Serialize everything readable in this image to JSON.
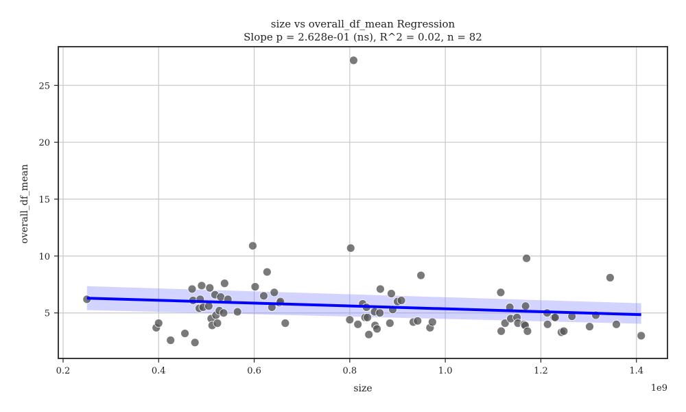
{
  "chart_data": {
    "type": "scatter",
    "title": "size vs overall_df_mean Regression",
    "subtitle": "Slope p = 2.628e-01 (ns), R^2 = 0.02, n = 82",
    "xlabel": "size",
    "ylabel": "overall_df_mean",
    "x_offset_label": "1e9",
    "xlim": [
      0.19,
      1.465
    ],
    "ylim": [
      1.0,
      28.4
    ],
    "xticks": [
      0.2,
      0.4,
      0.6,
      0.8,
      1.0,
      1.2,
      1.4
    ],
    "xtick_labels": [
      "0.2",
      "0.4",
      "0.6",
      "0.8",
      "1.0",
      "1.2",
      "1.4"
    ],
    "yticks": [
      5,
      10,
      15,
      20,
      25
    ],
    "ytick_labels": [
      "5",
      "10",
      "15",
      "20",
      "25"
    ],
    "grid": true,
    "colors": {
      "points": "#555555",
      "line": "#0000ff",
      "band": "#8080ff"
    },
    "regression": {
      "x": [
        0.25,
        1.41
      ],
      "y": [
        6.3,
        4.85
      ]
    },
    "confidence_band": {
      "x": [
        0.25,
        1.41
      ],
      "upper": [
        7.35,
        5.85
      ],
      "lower": [
        5.25,
        4.05
      ]
    },
    "points": [
      [
        0.25,
        6.2
      ],
      [
        0.395,
        3.7
      ],
      [
        0.4,
        4.1
      ],
      [
        0.425,
        2.6
      ],
      [
        0.455,
        3.2
      ],
      [
        0.47,
        7.1
      ],
      [
        0.472,
        6.1
      ],
      [
        0.476,
        2.4
      ],
      [
        0.485,
        5.4
      ],
      [
        0.487,
        6.2
      ],
      [
        0.49,
        7.4
      ],
      [
        0.493,
        5.5
      ],
      [
        0.505,
        5.6
      ],
      [
        0.507,
        7.2
      ],
      [
        0.51,
        4.5
      ],
      [
        0.512,
        3.9
      ],
      [
        0.518,
        6.6
      ],
      [
        0.52,
        4.8
      ],
      [
        0.523,
        4.1
      ],
      [
        0.527,
        5.2
      ],
      [
        0.53,
        6.4
      ],
      [
        0.536,
        5.0
      ],
      [
        0.538,
        7.6
      ],
      [
        0.545,
        6.2
      ],
      [
        0.565,
        5.1
      ],
      [
        0.597,
        10.9
      ],
      [
        0.602,
        7.3
      ],
      [
        0.62,
        6.5
      ],
      [
        0.627,
        8.6
      ],
      [
        0.637,
        5.5
      ],
      [
        0.642,
        6.8
      ],
      [
        0.653,
        5.9
      ],
      [
        0.655,
        6.0
      ],
      [
        0.665,
        4.1
      ],
      [
        0.8,
        4.4
      ],
      [
        0.802,
        10.7
      ],
      [
        0.808,
        27.2
      ],
      [
        0.817,
        4.0
      ],
      [
        0.827,
        5.8
      ],
      [
        0.832,
        4.6
      ],
      [
        0.835,
        5.5
      ],
      [
        0.837,
        4.6
      ],
      [
        0.84,
        3.1
      ],
      [
        0.852,
        5.1
      ],
      [
        0.853,
        3.9
      ],
      [
        0.857,
        3.6
      ],
      [
        0.863,
        5.0
      ],
      [
        0.864,
        7.1
      ],
      [
        0.884,
        4.1
      ],
      [
        0.887,
        6.7
      ],
      [
        0.89,
        5.3
      ],
      [
        0.9,
        6.0
      ],
      [
        0.908,
        6.1
      ],
      [
        0.933,
        4.2
      ],
      [
        0.942,
        4.3
      ],
      [
        0.949,
        8.3
      ],
      [
        0.968,
        3.7
      ],
      [
        0.973,
        4.2
      ],
      [
        1.116,
        6.8
      ],
      [
        1.117,
        3.4
      ],
      [
        1.125,
        4.1
      ],
      [
        1.135,
        5.5
      ],
      [
        1.137,
        4.5
      ],
      [
        1.15,
        4.6
      ],
      [
        1.152,
        4.1
      ],
      [
        1.165,
        4.0
      ],
      [
        1.167,
        3.9
      ],
      [
        1.168,
        5.6
      ],
      [
        1.17,
        9.8
      ],
      [
        1.172,
        3.4
      ],
      [
        1.213,
        5.0
      ],
      [
        1.214,
        4.0
      ],
      [
        1.228,
        4.6
      ],
      [
        1.23,
        4.6
      ],
      [
        1.243,
        3.3
      ],
      [
        1.248,
        3.4
      ],
      [
        1.265,
        4.7
      ],
      [
        1.302,
        3.8
      ],
      [
        1.315,
        4.8
      ],
      [
        1.345,
        8.1
      ],
      [
        1.358,
        4.0
      ],
      [
        1.41,
        3.0
      ]
    ]
  }
}
